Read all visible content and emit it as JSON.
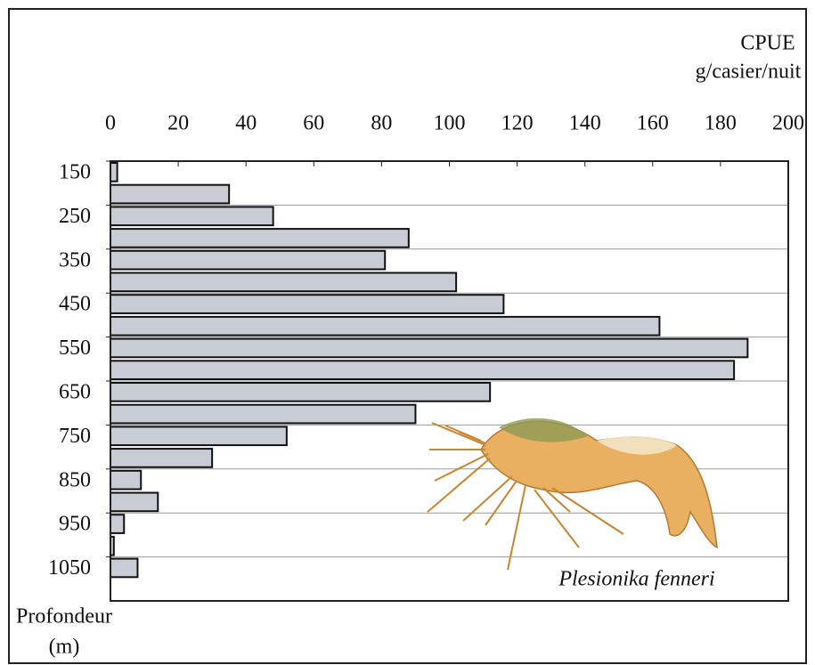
{
  "chart_data": {
    "type": "histogram",
    "orientation": "horizontal",
    "title": "CPUE",
    "subtitle": "g/casier/nuit",
    "ylabel": "Profondeur",
    "yunit": "(m)",
    "annotation": "Plesionika fenneri",
    "bins": [
      150,
      200,
      250,
      300,
      350,
      400,
      450,
      500,
      550,
      600,
      650,
      700,
      750,
      800,
      850,
      900,
      950,
      1000,
      1050,
      1100
    ],
    "values": [
      2,
      35,
      48,
      88,
      81,
      102,
      116,
      162,
      188,
      184,
      112,
      90,
      52,
      30,
      9,
      14,
      4,
      1,
      8
    ],
    "color": "#c8ccd4",
    "xlim": [
      0,
      200
    ],
    "xticks": [
      0,
      20,
      40,
      60,
      80,
      100,
      120,
      140,
      160,
      180,
      200
    ],
    "ylim": [
      150,
      1150
    ],
    "yticks": [
      150,
      250,
      350,
      450,
      550,
      650,
      750,
      850,
      950,
      1050
    ],
    "grid": true
  }
}
